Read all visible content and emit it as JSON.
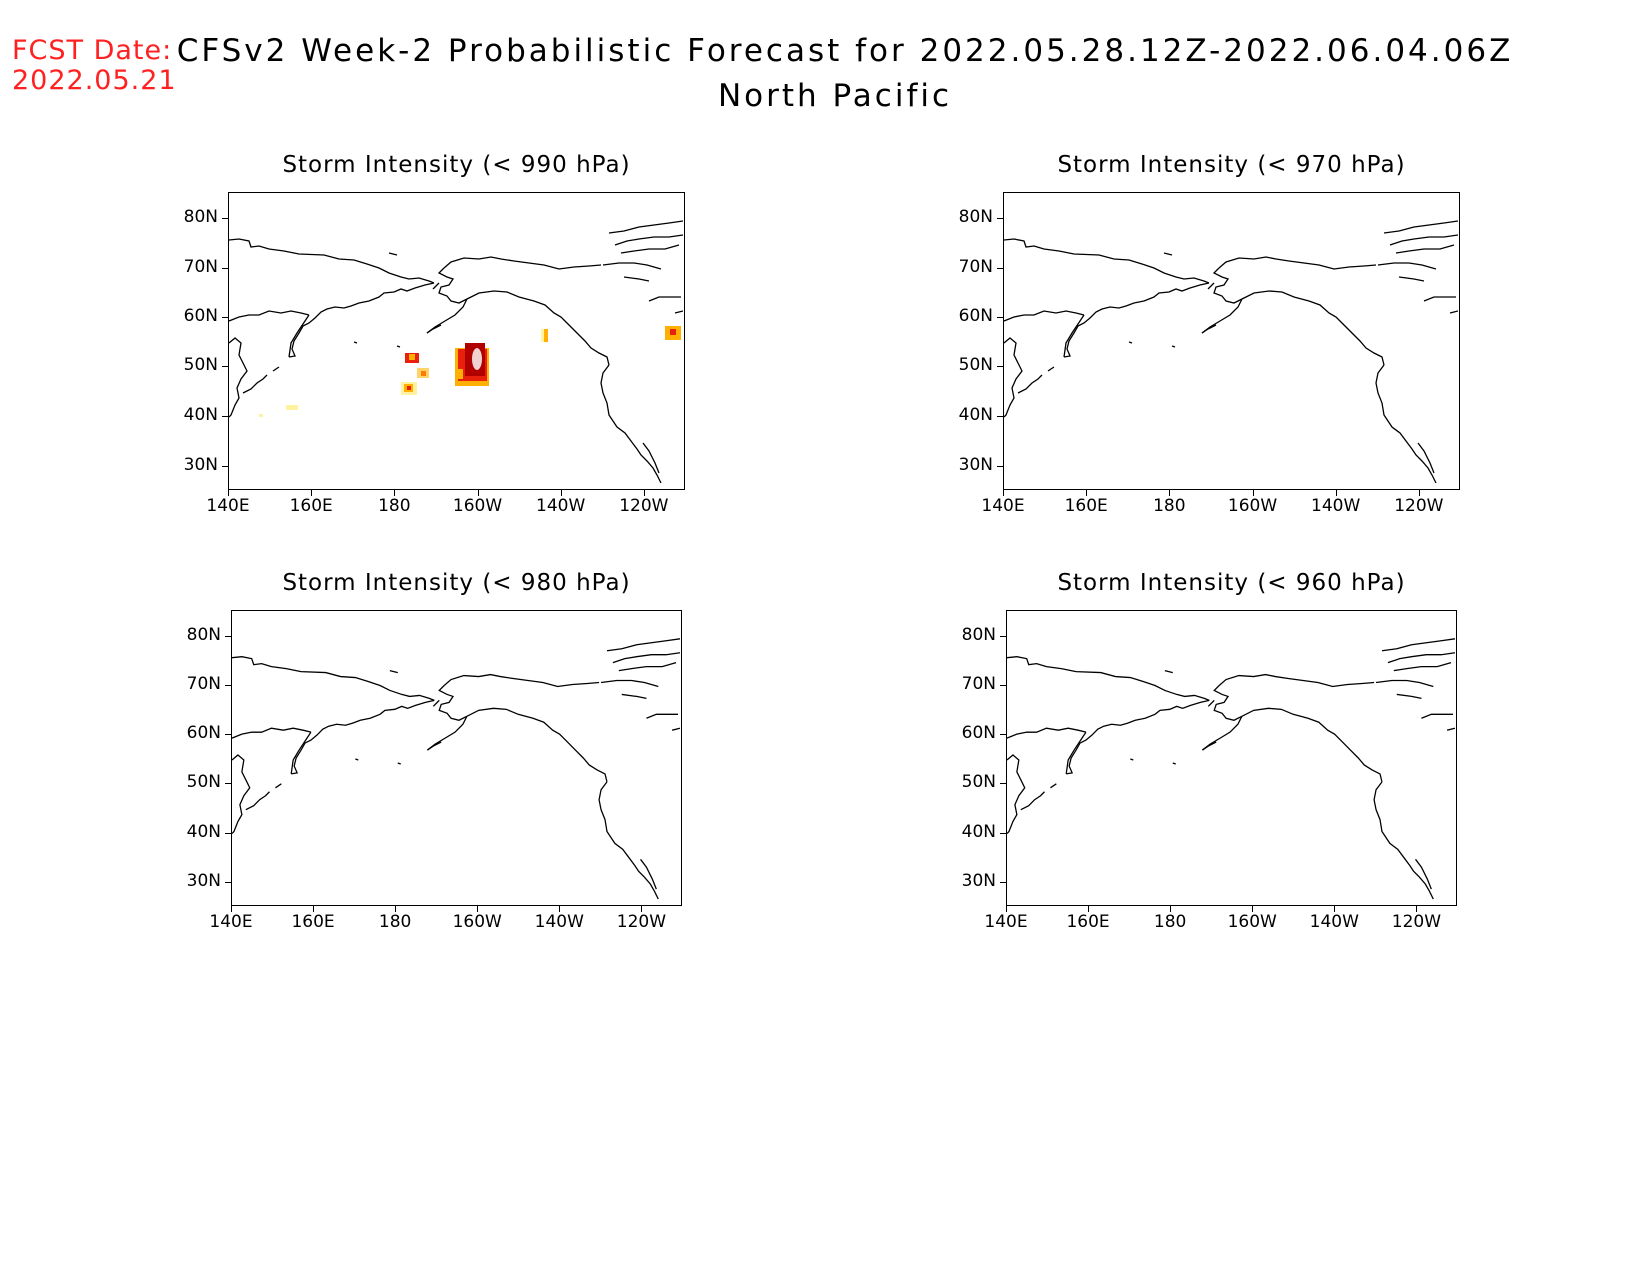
{
  "fcst_date": {
    "label": "FCST Date:",
    "value": "2022.05.21"
  },
  "title": {
    "line1": "CFSv2 Week-2 Probabilistic Forecast for 2022.05.28.12Z-2022.06.04.06Z",
    "line2": "North Pacific"
  },
  "panels": [
    {
      "title": "Storm Intensity (< 990 hPa)"
    },
    {
      "title": "Storm Intensity (< 970 hPa)"
    },
    {
      "title": "Storm Intensity (< 980 hPa)"
    },
    {
      "title": "Storm Intensity (< 960 hPa)"
    }
  ],
  "axes": {
    "lat_labels": [
      "80N",
      "70N",
      "60N",
      "50N",
      "40N",
      "30N"
    ],
    "lon_labels": [
      "140E",
      "160E",
      "180",
      "160W",
      "140W",
      "120W"
    ]
  },
  "colors": {
    "fcst_date": "#ff2020",
    "prob_low": "#fff2a0",
    "prob_mid": "#ffb000",
    "prob_high": "#e8200c",
    "prob_max": "#b00000",
    "prob_core": "#f0d0d0"
  }
}
